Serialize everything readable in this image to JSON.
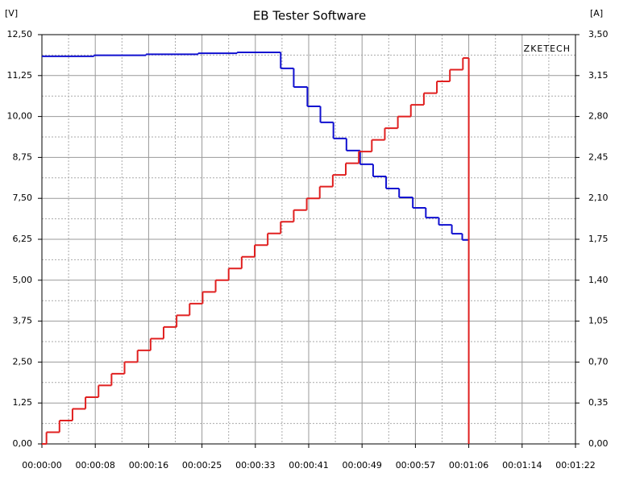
{
  "chart_data": {
    "type": "step",
    "title": "EB Tester Software",
    "y_unit_label": "[V]",
    "y2_unit_label": "[A]",
    "watermark": "ZKETECH",
    "xlim": [
      0,
      82
    ],
    "xticks": [
      {
        "value": 0,
        "label": "00:00:00"
      },
      {
        "value": 8.2,
        "label": "00:00:08"
      },
      {
        "value": 16.4,
        "label": "00:00:16"
      },
      {
        "value": 24.6,
        "label": "00:00:25"
      },
      {
        "value": 32.8,
        "label": "00:00:33"
      },
      {
        "value": 41,
        "label": "00:00:41"
      },
      {
        "value": 49.2,
        "label": "00:00:49"
      },
      {
        "value": 57.4,
        "label": "00:00:57"
      },
      {
        "value": 65.6,
        "label": "00:01:06"
      },
      {
        "value": 73.8,
        "label": "00:01:14"
      },
      {
        "value": 82,
        "label": "00:01:22"
      }
    ],
    "ylim": [
      0,
      12.5
    ],
    "yticks": [
      {
        "value": 0,
        "label": "0,00"
      },
      {
        "value": 1.25,
        "label": "1,25"
      },
      {
        "value": 2.5,
        "label": "2,50"
      },
      {
        "value": 3.75,
        "label": "3,75"
      },
      {
        "value": 5,
        "label": "5,00"
      },
      {
        "value": 6.25,
        "label": "6,25"
      },
      {
        "value": 7.5,
        "label": "7,50"
      },
      {
        "value": 8.75,
        "label": "8,75"
      },
      {
        "value": 10,
        "label": "10,00"
      },
      {
        "value": 11.25,
        "label": "11,25"
      },
      {
        "value": 12.5,
        "label": "12,50"
      }
    ],
    "y2lim": [
      0,
      3.5
    ],
    "y2ticks": [
      {
        "value": 0,
        "label": "0,00"
      },
      {
        "value": 0.35,
        "label": "0,35"
      },
      {
        "value": 0.7,
        "label": "0,70"
      },
      {
        "value": 1.05,
        "label": "1,05"
      },
      {
        "value": 1.4,
        "label": "1,40"
      },
      {
        "value": 1.75,
        "label": "1,75"
      },
      {
        "value": 2.1,
        "label": "2,10"
      },
      {
        "value": 2.45,
        "label": "2,45"
      },
      {
        "value": 2.8,
        "label": "2,80"
      },
      {
        "value": 3.15,
        "label": "3,15"
      },
      {
        "value": 3.5,
        "label": "3,50"
      }
    ],
    "grid": true,
    "series": [
      {
        "color": "#1010d0",
        "x": [
          0,
          8,
          16,
          24,
          30,
          36.7,
          38.7,
          40.8,
          42.8,
          44.8,
          46.8,
          48.9,
          50.9,
          52.9,
          54.9,
          57.0,
          59.0,
          61.0,
          63.0,
          64.6,
          65.6
        ],
        "values": [
          11.84,
          11.87,
          11.9,
          11.93,
          11.96,
          11.47,
          10.9,
          10.31,
          9.82,
          9.33,
          8.96,
          8.54,
          8.17,
          7.8,
          7.53,
          7.21,
          6.91,
          6.69,
          6.42,
          6.23,
          6.23
        ]
      },
      {
        "color": "#e02020",
        "axis": "y2",
        "x": [
          0,
          0.7,
          2.7,
          4.7,
          6.7,
          8.7,
          10.7,
          12.7,
          14.7,
          16.7,
          18.7,
          20.7,
          22.7,
          24.7,
          26.7,
          28.7,
          30.7,
          32.7,
          34.7,
          36.7,
          38.7,
          40.7,
          42.7,
          44.7,
          46.7,
          48.7,
          50.7,
          52.7,
          54.7,
          56.7,
          58.7,
          60.7,
          62.7,
          64.7,
          65.6
        ],
        "values": [
          0,
          0.1,
          0.2,
          0.3,
          0.4,
          0.5,
          0.6,
          0.7,
          0.8,
          0.9,
          1.0,
          1.1,
          1.2,
          1.3,
          1.4,
          1.5,
          1.6,
          1.7,
          1.8,
          1.9,
          2.0,
          2.1,
          2.2,
          2.3,
          2.4,
          2.5,
          2.6,
          2.7,
          2.8,
          2.9,
          3.0,
          3.1,
          3.2,
          3.3,
          0
        ]
      }
    ]
  }
}
